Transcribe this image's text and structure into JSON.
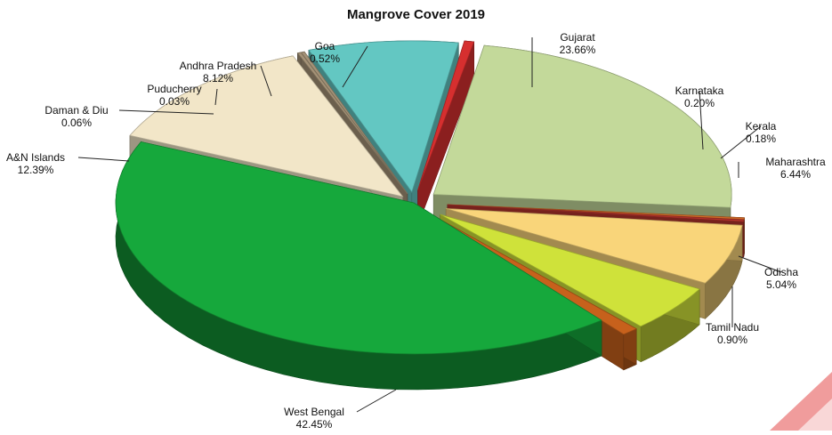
{
  "chart_data": {
    "type": "pie",
    "title": "Mangrove Cover 2019",
    "unit": "%",
    "slices": [
      {
        "label": "Gujarat",
        "value": 23.66,
        "display": "23.66%",
        "color": "#c3d99a"
      },
      {
        "label": "Karnataka",
        "value": 0.2,
        "display": "0.20%",
        "color": "#d16a28"
      },
      {
        "label": "Kerala",
        "value": 0.18,
        "display": "0.18%",
        "color": "#b5342c"
      },
      {
        "label": "Maharashtra",
        "value": 6.44,
        "display": "6.44%",
        "color": "#f9d57a"
      },
      {
        "label": "Odisha",
        "value": 5.04,
        "display": "5.04%",
        "color": "#cfe23a"
      },
      {
        "label": "Tamil Nadu",
        "value": 0.9,
        "display": "0.90%",
        "color": "#c7611c"
      },
      {
        "label": "West Bengal",
        "value": 42.45,
        "display": "42.45%",
        "color": "#16a83c"
      },
      {
        "label": "A&N Islands",
        "value": 12.39,
        "display": "12.39%",
        "color": "#f2e6c8"
      },
      {
        "label": "Daman & Diu",
        "value": 0.06,
        "display": "0.06%",
        "color": "#a49277"
      },
      {
        "label": "Puducherry",
        "value": 0.03,
        "display": "0.03%",
        "color": "#a49277"
      },
      {
        "label": "Andhra Pradesh",
        "value": 8.12,
        "display": "8.12%",
        "color": "#63c7c2"
      },
      {
        "label": "Goa",
        "value": 0.52,
        "display": "0.52%",
        "color": "#d62f2f"
      }
    ]
  }
}
